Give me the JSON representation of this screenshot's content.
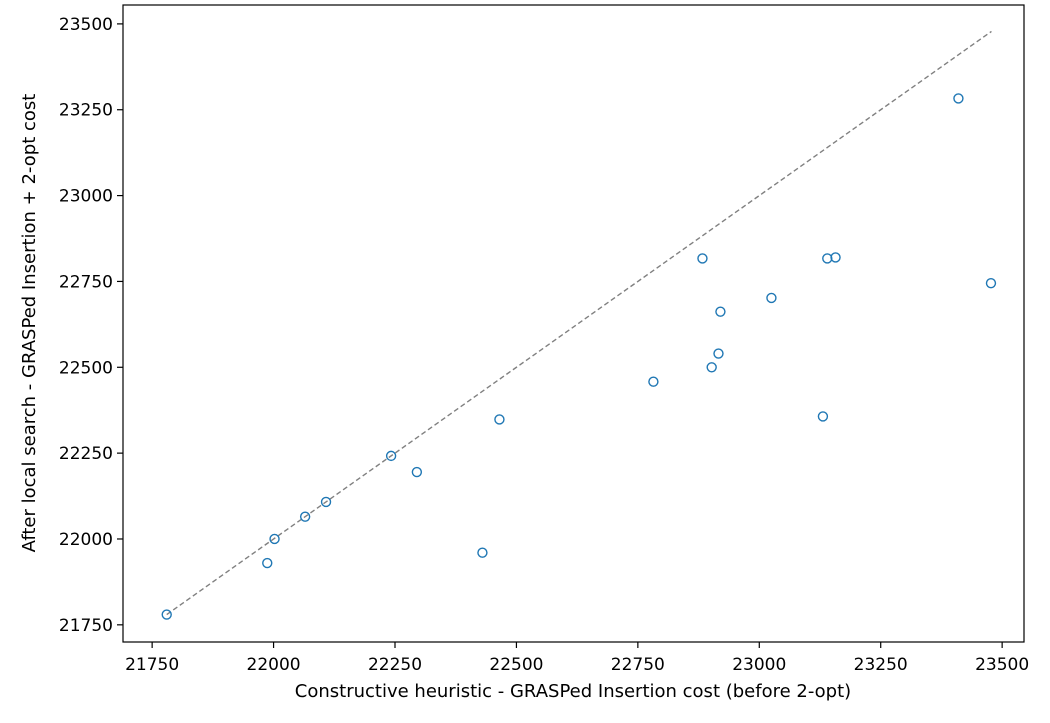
{
  "chart_data": {
    "type": "scatter",
    "title": "",
    "xlabel": "Constructive heuristic - GRASPed Insertion cost (before 2-opt)",
    "ylabel": "After local search - GRASPed Insertion + 2-opt cost",
    "xlim": [
      21690,
      23545
    ],
    "ylim": [
      21700,
      23555
    ],
    "xticks": [
      21750,
      22000,
      22250,
      22500,
      22750,
      23000,
      23250,
      23500
    ],
    "yticks": [
      21750,
      22000,
      22250,
      22500,
      22750,
      23000,
      23250,
      23500
    ],
    "grid": false,
    "reference_line": {
      "x": [
        21780,
        23478
      ],
      "y": [
        21780,
        23478
      ],
      "style": "dashed",
      "color": "#808080"
    },
    "marker_color": "#1f77b4",
    "points": [
      {
        "x": 21780,
        "y": 21780
      },
      {
        "x": 21987,
        "y": 21930
      },
      {
        "x": 22002,
        "y": 22000
      },
      {
        "x": 22065,
        "y": 22065
      },
      {
        "x": 22108,
        "y": 22108
      },
      {
        "x": 22242,
        "y": 22242
      },
      {
        "x": 22295,
        "y": 22195
      },
      {
        "x": 22430,
        "y": 21960
      },
      {
        "x": 22465,
        "y": 22348
      },
      {
        "x": 22782,
        "y": 22458
      },
      {
        "x": 22883,
        "y": 22817
      },
      {
        "x": 22902,
        "y": 22500
      },
      {
        "x": 22916,
        "y": 22540
      },
      {
        "x": 22920,
        "y": 22662
      },
      {
        "x": 23025,
        "y": 22702
      },
      {
        "x": 23131,
        "y": 22357
      },
      {
        "x": 23140,
        "y": 22817
      },
      {
        "x": 23157,
        "y": 22820
      },
      {
        "x": 23410,
        "y": 23283
      },
      {
        "x": 23477,
        "y": 22745
      }
    ]
  }
}
